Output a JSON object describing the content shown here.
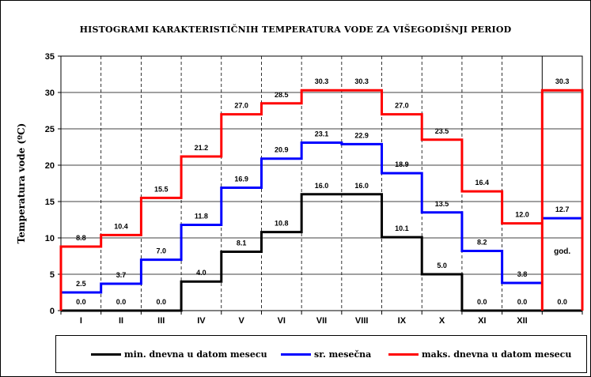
{
  "chart_data": {
    "type": "line",
    "title": "HISTOGRAMI KARAKTERISTIČNIH TEMPERATURA VODE ZA VIŠEGODIŠNJI PERIOD",
    "ylabel": "Temperatura vode (ºC)",
    "xlabel": "",
    "ylim": [
      0,
      35
    ],
    "yticks": [
      "0",
      "5",
      "10",
      "15",
      "20",
      "25",
      "30",
      "35"
    ],
    "categories": [
      "I",
      "II",
      "III",
      "IV",
      "V",
      "VI",
      "VII",
      "VIII",
      "IX",
      "X",
      "XI",
      "XII",
      ""
    ],
    "annual_label": "god.",
    "grid": true,
    "legend_position": "bottom",
    "series": [
      {
        "name": "min. dnevna u datom mesecu",
        "color": "#000000",
        "values": [
          0.0,
          0.0,
          0.0,
          4.0,
          8.1,
          10.8,
          16.0,
          16.0,
          10.1,
          5.0,
          0.0,
          0.0,
          0.0
        ],
        "labels": [
          "0.0",
          "0.0",
          "0.0",
          "4.0",
          "8.1",
          "10.8",
          "16.0",
          "16.0",
          "10.1",
          "5.0",
          "0.0",
          "0.0",
          "0.0"
        ]
      },
      {
        "name": "sr. mesečna",
        "color": "#0000ff",
        "values": [
          2.5,
          3.7,
          7.0,
          11.8,
          16.9,
          20.9,
          23.1,
          22.9,
          18.9,
          13.5,
          8.2,
          3.8,
          12.7
        ],
        "labels": [
          "2.5",
          "3.7",
          "7.0",
          "11.8",
          "16.9",
          "20.9",
          "23.1",
          "22.9",
          "18.9",
          "13.5",
          "8.2",
          "3.8",
          "12.7"
        ]
      },
      {
        "name": "maks. dnevna u datom mesecu",
        "color": "#ff0000",
        "values": [
          8.8,
          10.4,
          15.5,
          21.2,
          27.0,
          28.5,
          30.3,
          30.3,
          27.0,
          23.5,
          16.4,
          12.0,
          30.3
        ],
        "labels": [
          "8.8",
          "10.4",
          "15.5",
          "21.2",
          "27.0",
          "28.5",
          "30.3",
          "30.3",
          "27.0",
          "23.5",
          "16.4",
          "12.0",
          "30.3"
        ]
      }
    ]
  }
}
